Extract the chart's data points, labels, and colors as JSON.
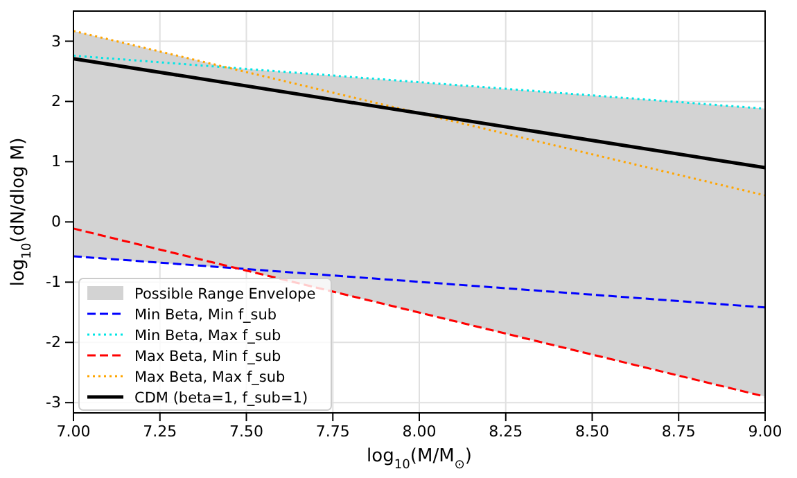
{
  "chart_data": {
    "type": "line",
    "xlabel": "log$_{10}$(M/M$_{⊙}$)",
    "ylabel": "log$_{10}$(dN/dlog M)",
    "xlim": [
      7,
      9
    ],
    "ylim": [
      -3.17,
      3.5
    ],
    "xticks": [
      {
        "value": 7,
        "label": "7.00"
      },
      {
        "value": 7.25,
        "label": "7.25"
      },
      {
        "value": 7.5,
        "label": "7.50"
      },
      {
        "value": 7.75,
        "label": "7.75"
      },
      {
        "value": 8,
        "label": "8.00"
      },
      {
        "value": 8.25,
        "label": "8.25"
      },
      {
        "value": 8.5,
        "label": "8.50"
      },
      {
        "value": 8.75,
        "label": "8.75"
      },
      {
        "value": 9,
        "label": "9.00"
      }
    ],
    "yticks": [
      -3,
      -2,
      -1,
      0,
      1,
      2,
      3
    ],
    "grid": true,
    "legend": "bottom left",
    "series": [
      {
        "type": "area",
        "name": "Possible Range Envelope",
        "color": "#d3d3d3",
        "x": [
          7,
          7.44,
          7.47,
          9
        ],
        "values": [
          null,
          null,
          null,
          null
        ],
        "upper": [
          3.17,
          2.57,
          2.55,
          1.88
        ],
        "lower": [
          -0.57,
          -0.76,
          -0.77,
          -2.9
        ]
      },
      {
        "name": "Min Beta, Min f_sub",
        "color": "#0000ff",
        "line_style": "dashed",
        "x": [
          7,
          9
        ],
        "values": [
          -0.57,
          -1.42
        ]
      },
      {
        "name": "Min Beta, Max f_sub",
        "color": "#00e5e5",
        "line_style": "dotted",
        "x": [
          7,
          9
        ],
        "values": [
          2.76,
          1.88
        ]
      },
      {
        "name": "Max Beta, Min f_sub",
        "color": "#ff0000",
        "line_style": "dashed",
        "x": [
          7,
          9
        ],
        "values": [
          -0.11,
          -2.9
        ]
      },
      {
        "name": "Max Beta, Max f_sub",
        "color": "#ffa500",
        "line_style": "dotted",
        "x": [
          7,
          9
        ],
        "values": [
          3.17,
          0.44
        ]
      },
      {
        "name": "CDM (beta=1, f_sub=1)",
        "color": "#000000",
        "line_style": "solid",
        "x": [
          7,
          9
        ],
        "values": [
          2.71,
          0.9
        ]
      }
    ]
  }
}
